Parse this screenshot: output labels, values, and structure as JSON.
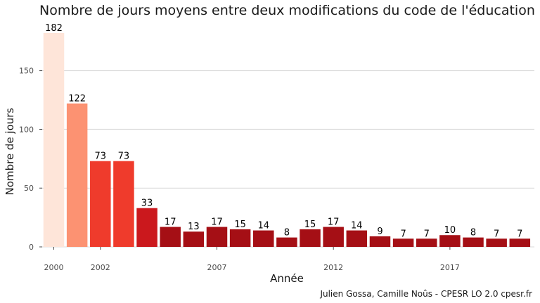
{
  "chart_data": {
    "type": "bar",
    "title": "Nombre de jours moyens entre deux modifications du code de l'éducation",
    "xlabel": "Année",
    "ylabel": "Nombre de jours",
    "caption": "Julien Gossa, Camille Noûs - CPESR LO 2.0 cpesr.fr",
    "categories": [
      2000,
      2001,
      2002,
      2003,
      2004,
      2005,
      2006,
      2007,
      2008,
      2009,
      2010,
      2011,
      2012,
      2013,
      2014,
      2015,
      2016,
      2017,
      2018,
      2019,
      2020
    ],
    "values": [
      182,
      122,
      73,
      73,
      33,
      17,
      13,
      17,
      15,
      14,
      8,
      15,
      17,
      14,
      9,
      7,
      7,
      10,
      8,
      7,
      7
    ],
    "colors": [
      "#fee5d9",
      "#fc9272",
      "#ef3b2c",
      "#ef3b2c",
      "#cb181d",
      "#a50f15",
      "#a50f15",
      "#a50f15",
      "#a50f15",
      "#a50f15",
      "#a50f15",
      "#a50f15",
      "#a50f15",
      "#a50f15",
      "#a50f15",
      "#a50f15",
      "#a50f15",
      "#a50f15",
      "#a50f15",
      "#a50f15",
      "#a50f15"
    ],
    "ylim": [
      0,
      182
    ],
    "yticks": [
      0,
      50,
      100,
      150
    ],
    "xticks": [
      2000,
      2002,
      2007,
      2012,
      2017
    ],
    "grid": true,
    "legend": "none"
  }
}
